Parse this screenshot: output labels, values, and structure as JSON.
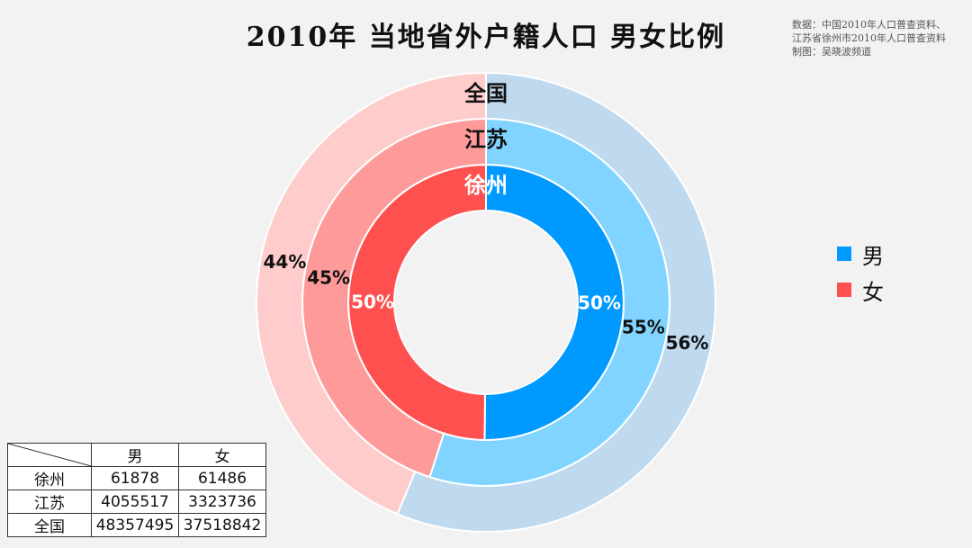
{
  "title": "2010年 当地省外户籍人口 男女比例",
  "source": [
    "数据：中国2010年人口普查资料、",
    "江苏省徐州市2010年人口普查资料",
    "制图：吴晓波频道"
  ],
  "legend": [
    {
      "label": "男",
      "color": "#0099ff"
    },
    {
      "label": "女",
      "color": "#ff5050"
    }
  ],
  "table": {
    "headers": [
      "男",
      "女"
    ],
    "rows": [
      {
        "region": "徐州",
        "male": "61878",
        "female": "61486"
      },
      {
        "region": "江苏",
        "male": "4055517",
        "female": "3323736"
      },
      {
        "region": "全国",
        "male": "48357495",
        "female": "37518842"
      }
    ]
  },
  "chart_data": {
    "type": "pie",
    "subtype": "nested-donut",
    "title": "2010年 当地省外户籍人口 男女比例",
    "categories": [
      "男",
      "女"
    ],
    "series": [
      {
        "name": "徐州",
        "values": [
          61878,
          61486
        ],
        "labels": [
          "50%",
          "50%"
        ],
        "colors": [
          "#0099ff",
          "#ff5050"
        ]
      },
      {
        "name": "江苏",
        "values": [
          4055517,
          3323736
        ],
        "labels": [
          "55%",
          "45%"
        ],
        "colors": [
          "#80d4ff",
          "#ff9a9a"
        ]
      },
      {
        "name": "全国",
        "values": [
          48357495,
          37518842
        ],
        "labels": [
          "56%",
          "44%"
        ],
        "colors": [
          "#bfd9ef",
          "#ffcccc"
        ]
      }
    ],
    "legend_position": "right"
  }
}
